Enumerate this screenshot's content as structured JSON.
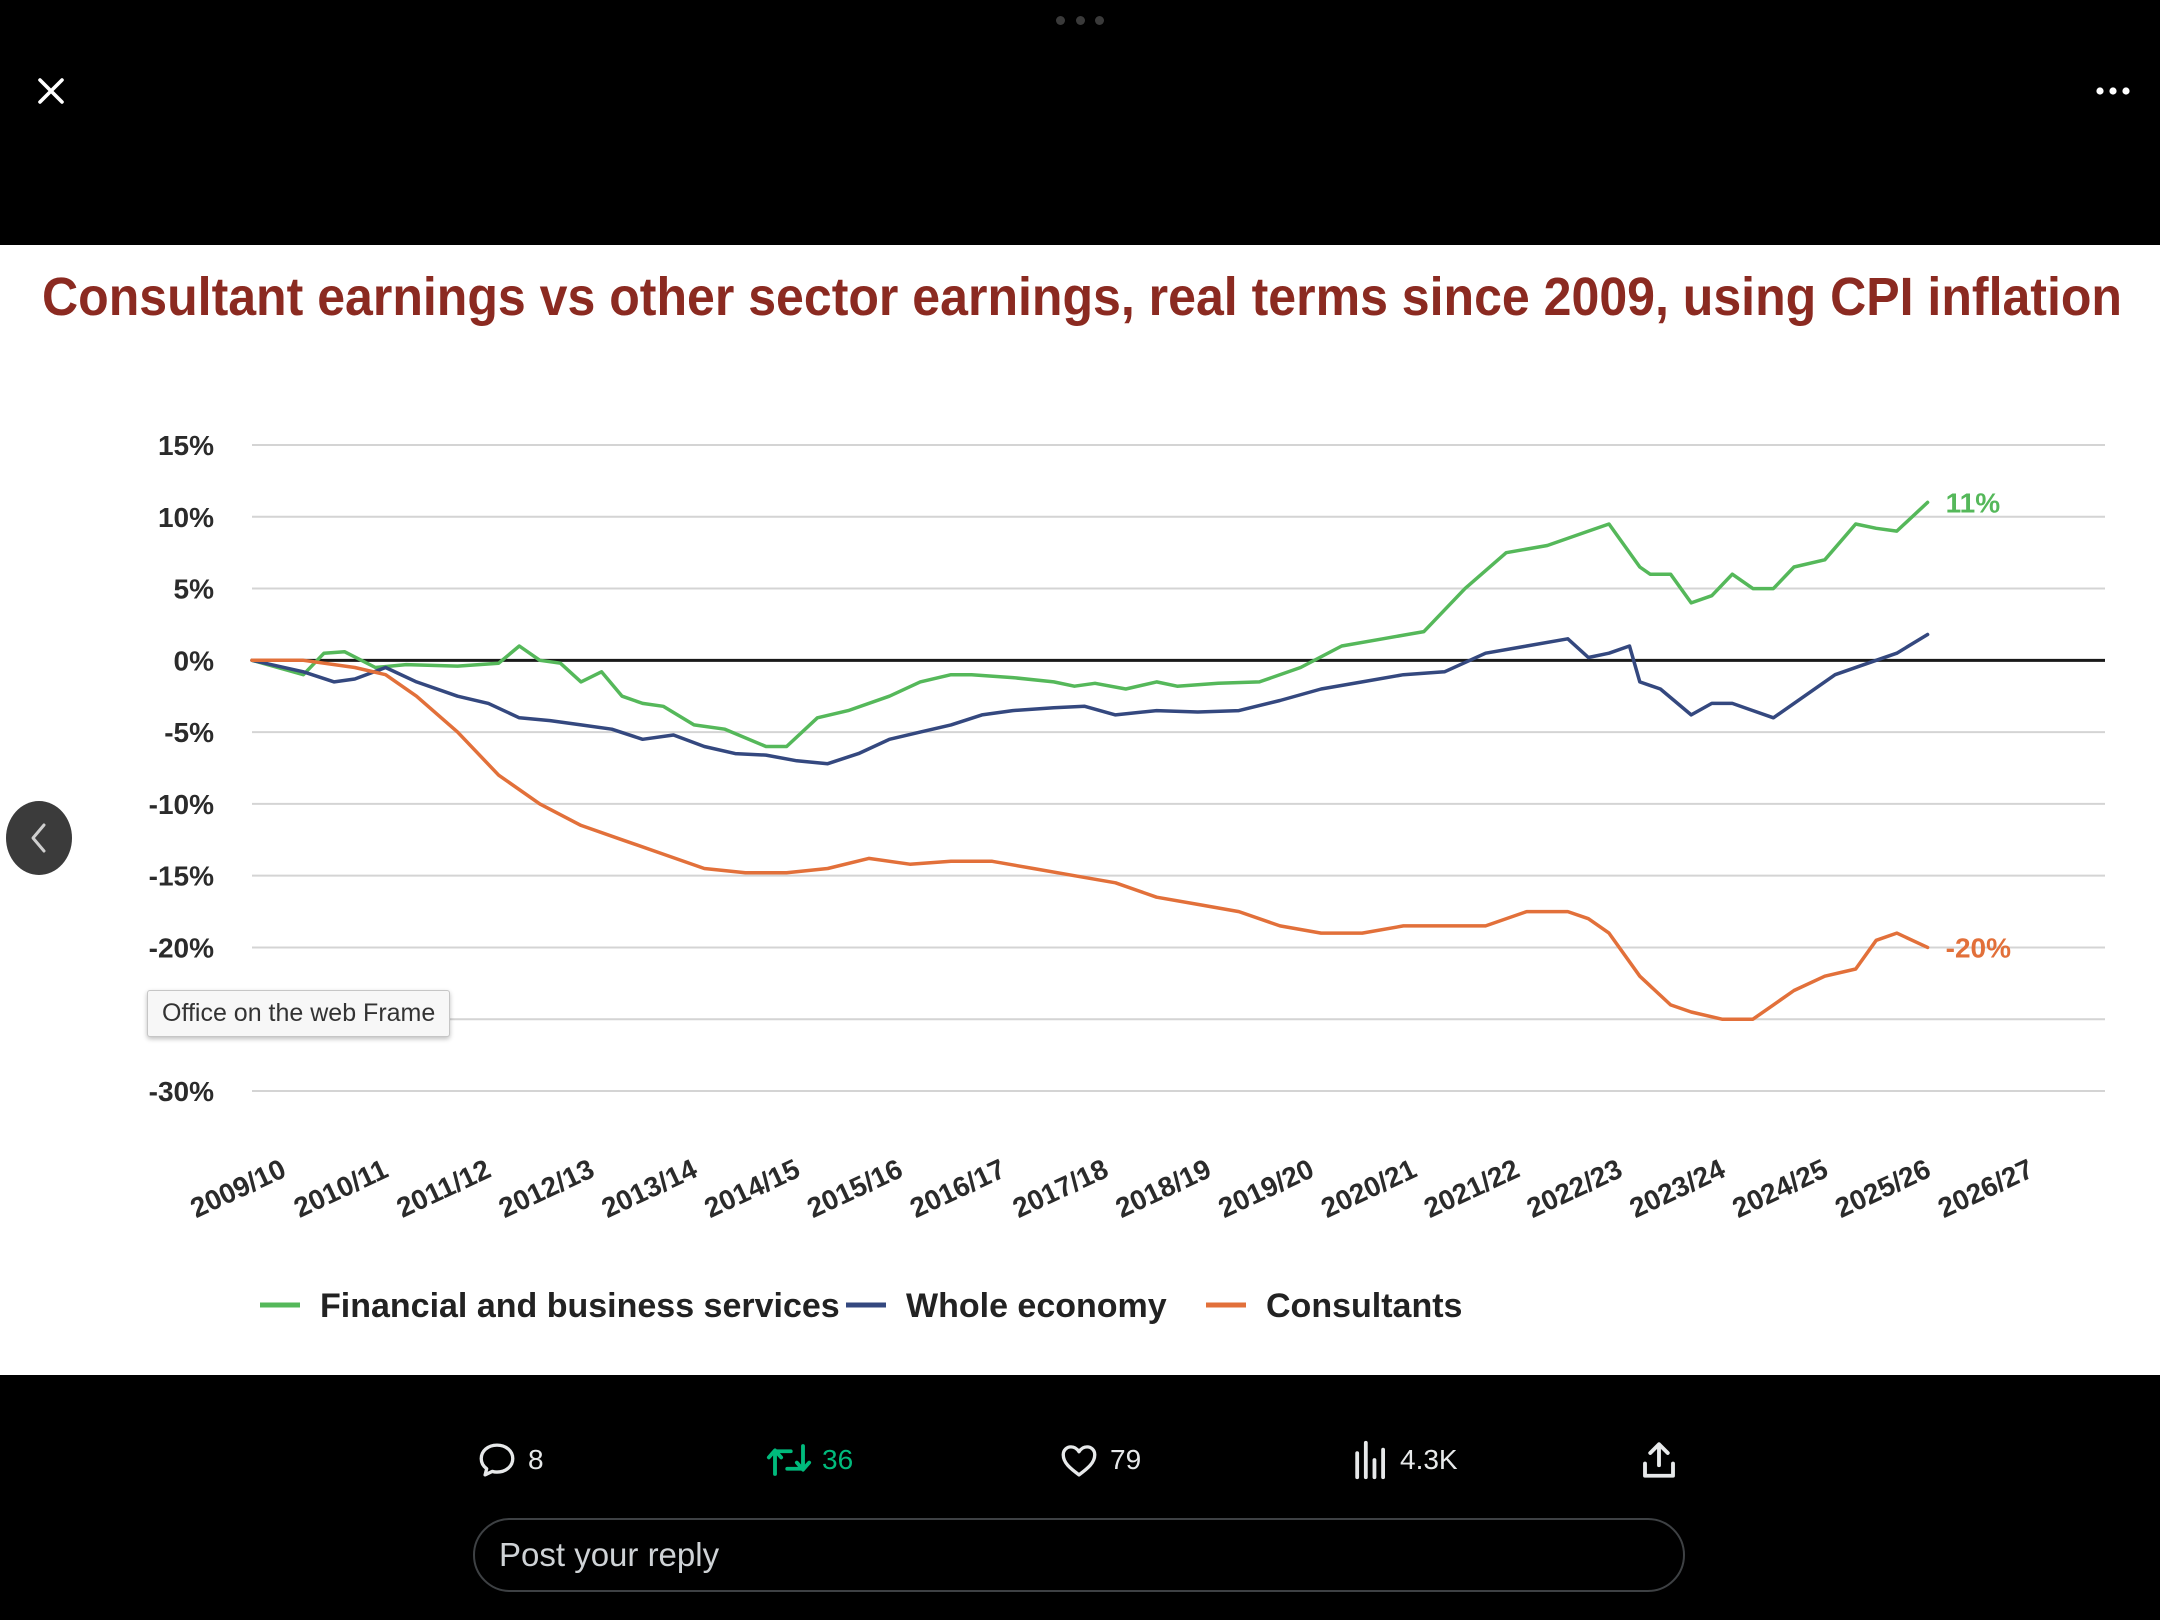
{
  "viewer": {
    "close_icon": "close-icon",
    "more_icon": "more-horizontal-icon",
    "prev_icon": "chevron-left-icon"
  },
  "tooltip": {
    "text": "Office on the web Frame"
  },
  "actions": {
    "replies": {
      "count": "8",
      "icon": "reply-icon"
    },
    "reposts": {
      "count": "36",
      "icon": "repost-icon",
      "color": "#00ba7c"
    },
    "likes": {
      "count": "79",
      "icon": "heart-icon"
    },
    "views": {
      "count": "4.3K",
      "icon": "views-icon"
    },
    "share": {
      "icon": "share-icon"
    }
  },
  "reply": {
    "placeholder": "Post your reply"
  },
  "chart_data": {
    "type": "line",
    "title": "Consultant earnings vs other sector earnings, real terms since 2009, using CPI inflation",
    "title_color": "#8b2a21",
    "x_ticks": [
      "2009/10",
      "2010/11",
      "2011/12",
      "2012/13",
      "2013/14",
      "2014/15",
      "2015/16",
      "2016/17",
      "2017/18",
      "2018/19",
      "2019/20",
      "2020/21",
      "2021/22",
      "2022/23",
      "2023/24",
      "2024/25",
      "2025/26",
      "2026/27"
    ],
    "y_ticks": [
      "15%",
      "10%",
      "5%",
      "0%",
      "-5%",
      "-10%",
      "-15%",
      "-20%",
      "",
      "-30%"
    ],
    "ylim": [
      -30,
      15
    ],
    "xlim": [
      0,
      18
    ],
    "grid": true,
    "legend": "bottom",
    "series": [
      {
        "name": "Financial and business services",
        "color": "#55b85a",
        "end_label": "11%",
        "x": [
          0,
          0.5,
          0.7,
          0.9,
          1.2,
          1.5,
          2.0,
          2.4,
          2.6,
          2.8,
          3.0,
          3.2,
          3.4,
          3.6,
          3.8,
          4.0,
          4.3,
          4.6,
          5.0,
          5.2,
          5.5,
          5.8,
          6.2,
          6.5,
          6.8,
          7.0,
          7.4,
          7.8,
          8.0,
          8.2,
          8.5,
          8.8,
          9.0,
          9.4,
          9.8,
          10.2,
          10.6,
          11.0,
          11.4,
          11.8,
          12.2,
          12.6,
          13.0,
          13.2,
          13.5,
          13.6,
          13.8,
          14.0,
          14.2,
          14.4,
          14.6,
          14.8,
          15.0,
          15.3,
          15.6,
          15.8,
          16.0,
          16.3
        ],
        "y": [
          0,
          -1,
          0.5,
          0.6,
          -0.5,
          -0.3,
          -0.4,
          -0.2,
          1,
          0,
          -0.2,
          -1.5,
          -0.8,
          -2.5,
          -3,
          -3.2,
          -4.5,
          -4.8,
          -6,
          -6,
          -4,
          -3.5,
          -2.5,
          -1.5,
          -1,
          -1,
          -1.2,
          -1.5,
          -1.8,
          -1.6,
          -2,
          -1.5,
          -1.8,
          -1.6,
          -1.5,
          -0.5,
          1,
          1.5,
          2,
          5,
          7.5,
          8,
          9,
          9.5,
          6.5,
          6,
          6,
          4,
          4.5,
          6,
          5,
          5,
          6.5,
          7,
          9.5,
          9.2,
          9,
          11
        ]
      },
      {
        "name": "Whole economy",
        "color": "#34487f",
        "end_label": "",
        "x": [
          0,
          0.5,
          0.8,
          1.0,
          1.3,
          1.6,
          2.0,
          2.3,
          2.6,
          2.9,
          3.2,
          3.5,
          3.8,
          4.1,
          4.4,
          4.7,
          5.0,
          5.3,
          5.6,
          5.9,
          6.2,
          6.5,
          6.8,
          7.1,
          7.4,
          7.8,
          8.1,
          8.4,
          8.8,
          9.2,
          9.6,
          10.0,
          10.4,
          10.8,
          11.2,
          11.6,
          12.0,
          12.4,
          12.8,
          13.0,
          13.2,
          13.4,
          13.5,
          13.7,
          14.0,
          14.2,
          14.4,
          14.6,
          14.8,
          15.0,
          15.4,
          15.8,
          16.0,
          16.3
        ],
        "y": [
          0,
          -0.8,
          -1.5,
          -1.3,
          -0.5,
          -1.5,
          -2.5,
          -3,
          -4,
          -4.2,
          -4.5,
          -4.8,
          -5.5,
          -5.2,
          -6,
          -6.5,
          -6.6,
          -7,
          -7.2,
          -6.5,
          -5.5,
          -5,
          -4.5,
          -3.8,
          -3.5,
          -3.3,
          -3.2,
          -3.8,
          -3.5,
          -3.6,
          -3.5,
          -2.8,
          -2,
          -1.5,
          -1,
          -0.8,
          0.5,
          1,
          1.5,
          0.2,
          0.5,
          1,
          -1.5,
          -2,
          -3.8,
          -3,
          -3,
          -3.5,
          -4,
          -3,
          -1,
          0,
          0.5,
          1.8
        ]
      },
      {
        "name": "Consultants",
        "color": "#e2703a",
        "end_label": "-20%",
        "x": [
          0,
          0.5,
          1.0,
          1.3,
          1.6,
          2.0,
          2.4,
          2.8,
          3.2,
          3.6,
          4.0,
          4.4,
          4.8,
          5.2,
          5.6,
          6.0,
          6.4,
          6.8,
          7.2,
          7.6,
          8.0,
          8.4,
          8.8,
          9.2,
          9.6,
          10.0,
          10.4,
          10.8,
          11.2,
          11.6,
          12.0,
          12.4,
          12.8,
          13.0,
          13.2,
          13.5,
          13.8,
          14.0,
          14.3,
          14.6,
          14.8,
          15.0,
          15.3,
          15.6,
          15.8,
          16.0,
          16.3
        ],
        "y": [
          0,
          0,
          -0.5,
          -1,
          -2.5,
          -5,
          -8,
          -10,
          -11.5,
          -12.5,
          -13.5,
          -14.5,
          -14.8,
          -14.8,
          -14.5,
          -13.8,
          -14.2,
          -14,
          -14,
          -14.5,
          -15,
          -15.5,
          -16.5,
          -17,
          -17.5,
          -18.5,
          -19,
          -19,
          -18.5,
          -18.5,
          -18.5,
          -17.5,
          -17.5,
          -18,
          -19,
          -22,
          -24,
          -24.5,
          -25,
          -25,
          -24,
          -23,
          -22,
          -21.5,
          -19.5,
          -19,
          -20
        ]
      }
    ]
  }
}
